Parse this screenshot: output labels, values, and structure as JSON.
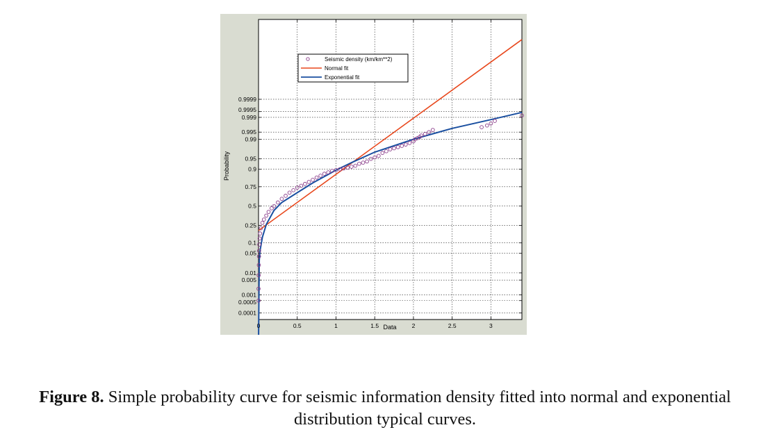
{
  "chart_data": {
    "type": "scatter",
    "title": "",
    "xlabel": "Data",
    "ylabel": "Probability",
    "xlim": [
      0,
      3.4
    ],
    "x_ticks": [
      0,
      0.5,
      1,
      1.5,
      2,
      2.5,
      3
    ],
    "x_tick_labels": [
      "0",
      "0.5",
      "1",
      "1.5",
      "2",
      "2.5",
      "3"
    ],
    "y_scale": "normal probability",
    "y_ticks": [
      0.0001,
      0.0005,
      0.001,
      0.005,
      0.01,
      0.05,
      0.1,
      0.25,
      0.5,
      0.75,
      0.9,
      0.95,
      0.99,
      0.995,
      0.999,
      0.9995,
      0.9999
    ],
    "y_tick_labels": [
      "0.0001",
      "0.0005",
      "0.001",
      "0.005",
      "0.01",
      "0.05",
      "0.1",
      "0.25",
      "0.5",
      "0.75",
      "0.9",
      "0.95",
      "0.99",
      "0.995",
      "0.999",
      "0.9995",
      "0.9999"
    ],
    "grid": true,
    "legend_position": "top-center",
    "legend": [
      {
        "label": "Seismic density (km/km**2)",
        "kind": "marker",
        "color": "#8a3c8a"
      },
      {
        "label": "Normal fit",
        "kind": "line",
        "color": "#e8471c"
      },
      {
        "label": "Exponential fit",
        "kind": "line",
        "color": "#1a4fa0"
      }
    ],
    "series": [
      {
        "name": "Seismic density (km/km**2)",
        "kind": "scatter",
        "x": [
          0.0,
          0.0,
          0.002,
          0.004,
          0.006,
          0.008,
          0.01,
          0.015,
          0.02,
          0.03,
          0.05,
          0.07,
          0.1,
          0.13,
          0.17,
          0.2,
          0.25,
          0.3,
          0.35,
          0.4,
          0.45,
          0.5,
          0.55,
          0.6,
          0.65,
          0.7,
          0.75,
          0.8,
          0.85,
          0.9,
          0.95,
          1.0,
          1.05,
          1.1,
          1.15,
          1.2,
          1.25,
          1.3,
          1.35,
          1.4,
          1.45,
          1.5,
          1.55,
          1.6,
          1.65,
          1.7,
          1.75,
          1.8,
          1.85,
          1.9,
          1.95,
          2.0,
          2.02,
          2.05,
          2.08,
          2.1,
          2.15,
          2.2,
          2.25,
          2.88,
          2.95,
          3.0,
          3.05,
          3.4
        ],
        "y": [
          0.0005,
          0.002,
          0.008,
          0.02,
          0.04,
          0.06,
          0.09,
          0.13,
          0.17,
          0.22,
          0.28,
          0.32,
          0.37,
          0.42,
          0.47,
          0.5,
          0.55,
          0.6,
          0.64,
          0.68,
          0.71,
          0.74,
          0.76,
          0.78,
          0.8,
          0.82,
          0.84,
          0.855,
          0.87,
          0.88,
          0.89,
          0.895,
          0.9,
          0.905,
          0.91,
          0.915,
          0.92,
          0.93,
          0.935,
          0.94,
          0.95,
          0.955,
          0.96,
          0.968,
          0.972,
          0.976,
          0.978,
          0.98,
          0.982,
          0.984,
          0.986,
          0.988,
          0.99,
          0.991,
          0.992,
          0.993,
          0.994,
          0.995,
          0.996,
          0.997,
          0.9975,
          0.998,
          0.9985,
          0.9992
        ]
      },
      {
        "name": "Normal fit",
        "kind": "line",
        "x": [
          0,
          3.4
        ],
        "z": [
          -0.85,
          5.8
        ]
      },
      {
        "name": "Exponential fit",
        "kind": "line",
        "x": [
          0,
          0.01,
          0.02,
          0.05,
          0.1,
          0.2,
          0.3,
          0.5,
          0.7,
          0.9,
          1.0,
          1.2,
          1.5,
          2.0,
          2.5,
          3.0,
          3.4
        ],
        "y": [
          0.0,
          0.03,
          0.06,
          0.14,
          0.26,
          0.44,
          0.55,
          0.68,
          0.79,
          0.865,
          0.895,
          0.935,
          0.97,
          0.99,
          0.9966,
          0.9987,
          0.99945
        ]
      }
    ]
  },
  "caption": {
    "label": "Figure 8.",
    "text": " Simple probability curve for seismic information density fitted into normal and exponential",
    "line2": "distribution typical curves."
  }
}
